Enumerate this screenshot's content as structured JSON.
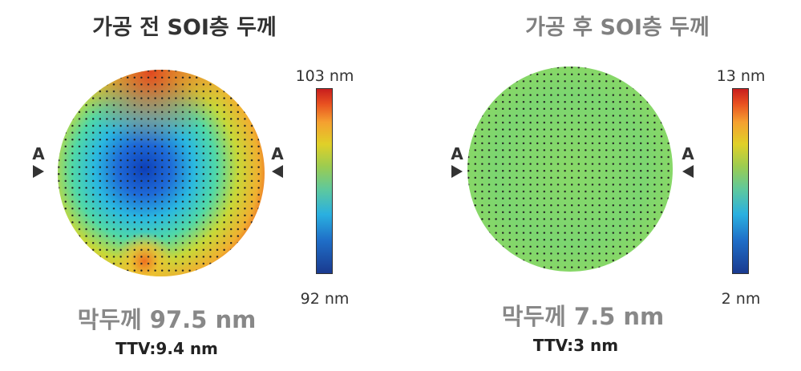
{
  "panels": [
    {
      "title": "가공 전 SOI층 두께",
      "title_color": "#333333",
      "cbar_max": "103 nm",
      "cbar_min": "92 nm",
      "thickness": "막두께  97.5 nm",
      "ttv": "TTV:9.4 nm",
      "marker_left": "A",
      "marker_right": "A"
    },
    {
      "title": "가공 후 SOI층 두께",
      "title_color": "#808080",
      "cbar_max": "13 nm",
      "cbar_min": "2 nm",
      "thickness": "막두께  7.5 nm",
      "ttv": "TTV:3 nm",
      "marker_left": "A",
      "marker_right": "A"
    }
  ],
  "colorscale": [
    "#1a3a8f",
    "#1f6fc8",
    "#2ab0e0",
    "#5cc8a0",
    "#9ccc50",
    "#e0d028",
    "#f5a030",
    "#e85020",
    "#c81e1e"
  ]
}
